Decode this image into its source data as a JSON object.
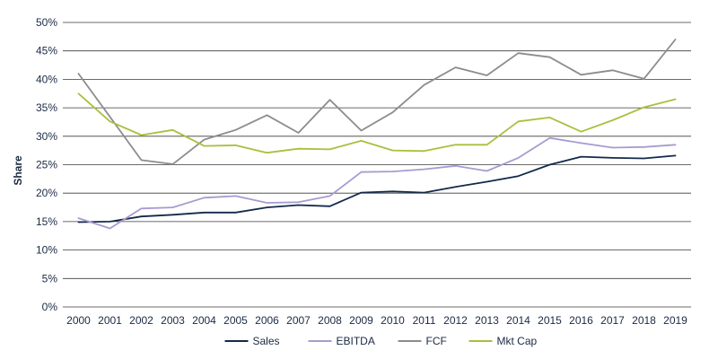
{
  "chart_data": {
    "type": "line",
    "title": "",
    "xlabel": "",
    "ylabel": "Share",
    "ylim": [
      0,
      50
    ],
    "ytick_step": 5,
    "ytick_suffix": "%",
    "grid": true,
    "legend_position": "bottom",
    "categories": [
      "2000",
      "2001",
      "2002",
      "2003",
      "2004",
      "2005",
      "2006",
      "2007",
      "2008",
      "2009",
      "2010",
      "2011",
      "2012",
      "2013",
      "2014",
      "2015",
      "2016",
      "2017",
      "2018",
      "2019"
    ],
    "series": [
      {
        "name": "Sales",
        "color": "#13294b",
        "values": [
          14.9,
          15.0,
          15.9,
          16.2,
          16.6,
          16.6,
          17.5,
          17.9,
          17.7,
          20.1,
          20.3,
          20.1,
          21.1,
          22.0,
          23.0,
          25.0,
          26.4,
          26.2,
          26.1,
          26.6
        ]
      },
      {
        "name": "EBITDA",
        "color": "#a89bd0",
        "values": [
          15.6,
          13.8,
          17.3,
          17.5,
          19.2,
          19.5,
          18.3,
          18.4,
          19.5,
          23.7,
          23.8,
          24.2,
          24.8,
          23.9,
          26.2,
          29.7,
          28.8,
          28.0,
          28.1,
          28.5
        ]
      },
      {
        "name": "FCF",
        "color": "#8c8c8c",
        "values": [
          41.0,
          33.4,
          25.8,
          25.1,
          29.4,
          31.1,
          33.7,
          30.6,
          36.4,
          31.0,
          34.2,
          39.0,
          42.1,
          40.7,
          44.6,
          43.9,
          40.8,
          41.6,
          40.1,
          47.0
        ]
      },
      {
        "name": "Mkt Cap",
        "color": "#a6c13c",
        "values": [
          37.5,
          32.6,
          30.2,
          31.1,
          28.3,
          28.4,
          27.1,
          27.8,
          27.7,
          29.2,
          27.5,
          27.4,
          28.5,
          28.5,
          32.6,
          33.3,
          30.8,
          32.8,
          35.1,
          36.5
        ]
      }
    ]
  }
}
